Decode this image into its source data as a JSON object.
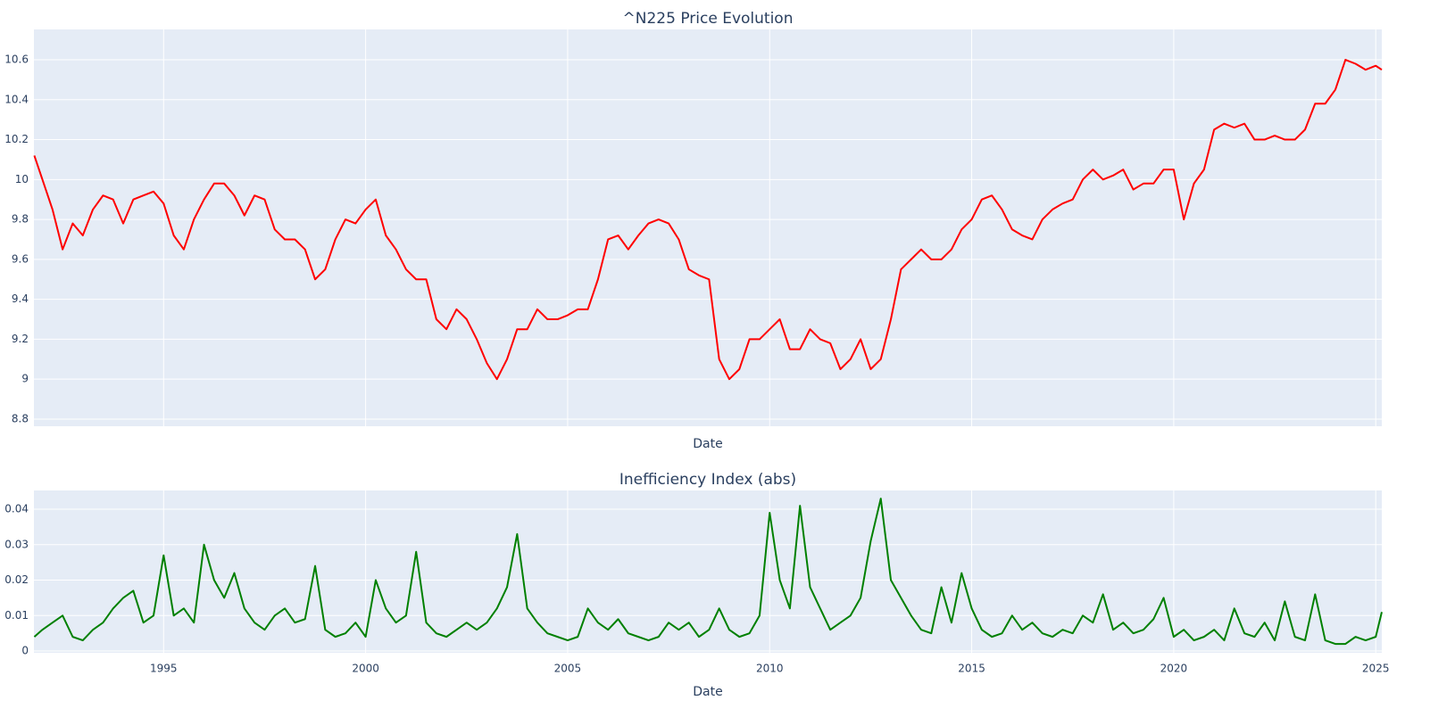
{
  "chart_data": [
    {
      "type": "line",
      "title": "^N225 Price Evolution",
      "x_label": "Date",
      "color": "#ff0000",
      "grid": true,
      "xlim": [
        1991.79,
        2025.15
      ],
      "xticks": [
        1995,
        2000,
        2005,
        2010,
        2015,
        2020,
        2025
      ],
      "ylim": [
        8.764,
        10.752
      ],
      "yticks": [
        8.8,
        9,
        9.2,
        9.4,
        9.6,
        9.8,
        10,
        10.2,
        10.4,
        10.6
      ],
      "x": [
        1991.8,
        1992,
        1992.25,
        1992.5,
        1992.75,
        1993,
        1993.25,
        1993.5,
        1993.75,
        1994,
        1994.25,
        1994.5,
        1994.75,
        1995,
        1995.25,
        1995.5,
        1995.75,
        1996,
        1996.25,
        1996.5,
        1996.75,
        1997,
        1997.25,
        1997.5,
        1997.75,
        1998,
        1998.25,
        1998.5,
        1998.75,
        1999,
        1999.25,
        1999.5,
        1999.75,
        2000,
        2000.25,
        2000.5,
        2000.75,
        2001,
        2001.25,
        2001.5,
        2001.75,
        2002,
        2002.25,
        2002.5,
        2002.75,
        2003,
        2003.25,
        2003.5,
        2003.75,
        2004,
        2004.25,
        2004.5,
        2004.75,
        2005,
        2005.25,
        2005.5,
        2005.75,
        2006,
        2006.25,
        2006.5,
        2006.75,
        2007,
        2007.25,
        2007.5,
        2007.75,
        2008,
        2008.25,
        2008.5,
        2008.75,
        2009,
        2009.25,
        2009.5,
        2009.75,
        2010,
        2010.25,
        2010.5,
        2010.75,
        2011,
        2011.25,
        2011.5,
        2011.75,
        2012,
        2012.25,
        2012.5,
        2012.75,
        2013,
        2013.25,
        2013.5,
        2013.75,
        2014,
        2014.25,
        2014.5,
        2014.75,
        2015,
        2015.25,
        2015.5,
        2015.75,
        2016,
        2016.25,
        2016.5,
        2016.75,
        2017,
        2017.25,
        2017.5,
        2017.75,
        2018,
        2018.25,
        2018.5,
        2018.75,
        2019,
        2019.25,
        2019.5,
        2019.75,
        2020,
        2020.25,
        2020.5,
        2020.75,
        2021,
        2021.25,
        2021.5,
        2021.75,
        2022,
        2022.25,
        2022.5,
        2022.75,
        2023,
        2023.25,
        2023.5,
        2023.75,
        2024,
        2024.25,
        2024.5,
        2024.75,
        2025,
        2025.15
      ],
      "values": [
        10.12,
        10.0,
        9.85,
        9.65,
        9.78,
        9.72,
        9.85,
        9.92,
        9.9,
        9.78,
        9.9,
        9.92,
        9.94,
        9.88,
        9.72,
        9.65,
        9.8,
        9.9,
        9.98,
        9.98,
        9.92,
        9.82,
        9.92,
        9.9,
        9.75,
        9.7,
        9.7,
        9.65,
        9.5,
        9.55,
        9.7,
        9.8,
        9.78,
        9.85,
        9.9,
        9.72,
        9.65,
        9.55,
        9.5,
        9.5,
        9.3,
        9.25,
        9.35,
        9.3,
        9.2,
        9.08,
        9.0,
        9.1,
        9.25,
        9.25,
        9.35,
        9.3,
        9.3,
        9.32,
        9.35,
        9.35,
        9.5,
        9.7,
        9.72,
        9.65,
        9.72,
        9.78,
        9.8,
        9.78,
        9.7,
        9.55,
        9.52,
        9.5,
        9.1,
        9.0,
        9.05,
        9.2,
        9.2,
        9.25,
        9.3,
        9.15,
        9.15,
        9.25,
        9.2,
        9.18,
        9.05,
        9.1,
        9.2,
        9.05,
        9.1,
        9.3,
        9.55,
        9.6,
        9.65,
        9.6,
        9.6,
        9.65,
        9.75,
        9.8,
        9.9,
        9.92,
        9.85,
        9.75,
        9.72,
        9.7,
        9.8,
        9.85,
        9.88,
        9.9,
        10.0,
        10.05,
        10.0,
        10.02,
        10.05,
        9.95,
        9.98,
        9.98,
        10.05,
        10.05,
        9.8,
        9.98,
        10.05,
        10.25,
        10.28,
        10.26,
        10.28,
        10.2,
        10.2,
        10.22,
        10.2,
        10.2,
        10.25,
        10.38,
        10.38,
        10.45,
        10.6,
        10.58,
        10.55,
        10.57,
        10.55
      ]
    },
    {
      "type": "line",
      "title": "Inefficiency Index (abs)",
      "x_label": "Date",
      "color": "#008000",
      "grid": true,
      "xlim": [
        1991.79,
        2025.15
      ],
      "xticks": [
        1995,
        2000,
        2005,
        2010,
        2015,
        2020,
        2025
      ],
      "ylim": [
        -0.0005,
        0.0453
      ],
      "yticks": [
        0,
        0.01,
        0.02,
        0.03,
        0.04
      ],
      "x": [
        1991.8,
        1992,
        1992.25,
        1992.5,
        1992.75,
        1993,
        1993.25,
        1993.5,
        1993.75,
        1994,
        1994.25,
        1994.5,
        1994.75,
        1995,
        1995.25,
        1995.5,
        1995.75,
        1996,
        1996.25,
        1996.5,
        1996.75,
        1997,
        1997.25,
        1997.5,
        1997.75,
        1998,
        1998.25,
        1998.5,
        1998.75,
        1999,
        1999.25,
        1999.5,
        1999.75,
        2000,
        2000.25,
        2000.5,
        2000.75,
        2001,
        2001.25,
        2001.5,
        2001.75,
        2002,
        2002.25,
        2002.5,
        2002.75,
        2003,
        2003.25,
        2003.5,
        2003.75,
        2004,
        2004.25,
        2004.5,
        2004.75,
        2005,
        2005.25,
        2005.5,
        2005.75,
        2006,
        2006.25,
        2006.5,
        2006.75,
        2007,
        2007.25,
        2007.5,
        2007.75,
        2008,
        2008.25,
        2008.5,
        2008.75,
        2009,
        2009.25,
        2009.5,
        2009.75,
        2010,
        2010.25,
        2010.5,
        2010.75,
        2011,
        2011.25,
        2011.5,
        2011.75,
        2012,
        2012.25,
        2012.5,
        2012.75,
        2013,
        2013.25,
        2013.5,
        2013.75,
        2014,
        2014.25,
        2014.5,
        2014.75,
        2015,
        2015.25,
        2015.5,
        2015.75,
        2016,
        2016.25,
        2016.5,
        2016.75,
        2017,
        2017.25,
        2017.5,
        2017.75,
        2018,
        2018.25,
        2018.5,
        2018.75,
        2019,
        2019.25,
        2019.5,
        2019.75,
        2020,
        2020.25,
        2020.5,
        2020.75,
        2021,
        2021.25,
        2021.5,
        2021.75,
        2022,
        2022.25,
        2022.5,
        2022.75,
        2023,
        2023.25,
        2023.5,
        2023.75,
        2024,
        2024.25,
        2024.5,
        2024.75,
        2025,
        2025.15
      ],
      "values": [
        0.004,
        0.006,
        0.008,
        0.01,
        0.004,
        0.003,
        0.006,
        0.008,
        0.012,
        0.015,
        0.017,
        0.008,
        0.01,
        0.027,
        0.01,
        0.012,
        0.008,
        0.03,
        0.02,
        0.015,
        0.022,
        0.012,
        0.008,
        0.006,
        0.01,
        0.012,
        0.008,
        0.009,
        0.024,
        0.006,
        0.004,
        0.005,
        0.008,
        0.004,
        0.02,
        0.012,
        0.008,
        0.01,
        0.028,
        0.008,
        0.005,
        0.004,
        0.006,
        0.008,
        0.006,
        0.008,
        0.012,
        0.018,
        0.033,
        0.012,
        0.008,
        0.005,
        0.004,
        0.003,
        0.004,
        0.012,
        0.008,
        0.006,
        0.009,
        0.005,
        0.004,
        0.003,
        0.004,
        0.008,
        0.006,
        0.008,
        0.004,
        0.006,
        0.012,
        0.006,
        0.004,
        0.005,
        0.01,
        0.039,
        0.02,
        0.012,
        0.041,
        0.018,
        0.012,
        0.006,
        0.008,
        0.01,
        0.015,
        0.031,
        0.043,
        0.02,
        0.015,
        0.01,
        0.006,
        0.005,
        0.018,
        0.008,
        0.022,
        0.012,
        0.006,
        0.004,
        0.005,
        0.01,
        0.006,
        0.008,
        0.005,
        0.004,
        0.006,
        0.005,
        0.01,
        0.008,
        0.016,
        0.006,
        0.008,
        0.005,
        0.006,
        0.009,
        0.015,
        0.004,
        0.006,
        0.003,
        0.004,
        0.006,
        0.003,
        0.012,
        0.005,
        0.004,
        0.008,
        0.003,
        0.014,
        0.004,
        0.003,
        0.016,
        0.003,
        0.002,
        0.002,
        0.004,
        0.003,
        0.004,
        0.011
      ]
    }
  ]
}
